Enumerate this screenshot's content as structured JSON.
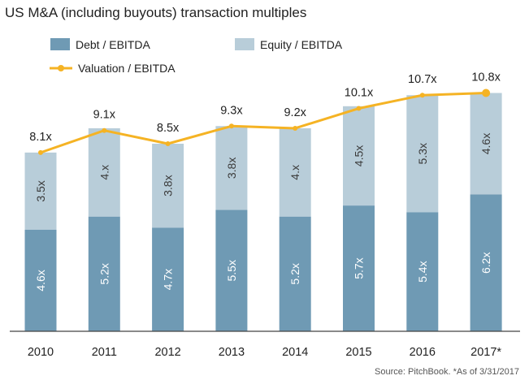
{
  "title": "US M&A (including buyouts) transaction multiples",
  "source": "Source: PitchBook. *As of 3/31/2017",
  "colors": {
    "debt": "#6f9ab4",
    "equity": "#b8cdd9",
    "valuation": "#f5b324",
    "axis": "#444444"
  },
  "chart_data": {
    "type": "bar",
    "stacked": true,
    "title": "US M&A (including buyouts) transaction multiples",
    "categories": [
      "2010",
      "2011",
      "2012",
      "2013",
      "2014",
      "2015",
      "2016",
      "2017*"
    ],
    "series": [
      {
        "name": "Debt / EBITDA",
        "type": "bar",
        "values": [
          4.6,
          5.2,
          4.7,
          5.5,
          5.2,
          5.7,
          5.4,
          6.2
        ],
        "labels": [
          "4.6x",
          "5.2x",
          "4.7x",
          "5.5x",
          "5.2x",
          "5.7x",
          "5.4x",
          "6.2x"
        ]
      },
      {
        "name": "Equity / EBITDA",
        "type": "bar",
        "values": [
          3.5,
          4.0,
          3.8,
          3.8,
          4.0,
          4.5,
          5.3,
          4.6
        ],
        "labels": [
          "3.5x",
          "4.x",
          "3.8x",
          "3.8x",
          "4.x",
          "4.5x",
          "5.3x",
          "4.6x"
        ]
      },
      {
        "name": "Valuation / EBITDA",
        "type": "line",
        "values": [
          8.1,
          9.1,
          8.5,
          9.3,
          9.2,
          10.1,
          10.7,
          10.8
        ],
        "labels": [
          "8.1x",
          "9.1x",
          "8.5x",
          "9.3x",
          "9.2x",
          "10.1x",
          "10.7x",
          "10.8x"
        ]
      }
    ],
    "ylim": [
      0,
      13.1
    ],
    "grid": false,
    "legend_position": "top-left"
  }
}
